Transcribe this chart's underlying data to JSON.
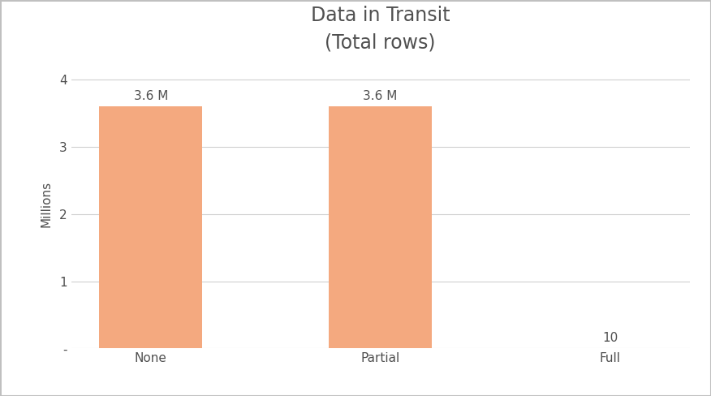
{
  "title": "Data in Transit",
  "subtitle": "(Total rows)",
  "categories": [
    "None",
    "Partial",
    "Full"
  ],
  "values": [
    3600000,
    3600000,
    10
  ],
  "bar_color": "#F4A97F",
  "bar_edgecolor": "none",
  "ylabel": "Millions",
  "ylim": [
    0,
    4300000
  ],
  "yticks": [
    0,
    1000000,
    2000000,
    3000000,
    4000000
  ],
  "ytick_labels": [
    "-",
    "1",
    "2",
    "3",
    "4"
  ],
  "bar_labels": [
    "3.6 M",
    "3.6 M",
    "10"
  ],
  "bar_label_fontsize": 11,
  "title_fontsize": 17,
  "subtitle_fontsize": 13,
  "ylabel_fontsize": 11,
  "tick_fontsize": 11,
  "background_color": "#ffffff",
  "plot_bg_color": "#ffffff",
  "grid_color": "#d0d0d0",
  "text_color": "#505050",
  "bar_width": 0.45,
  "border_color": "#c0c0c0"
}
